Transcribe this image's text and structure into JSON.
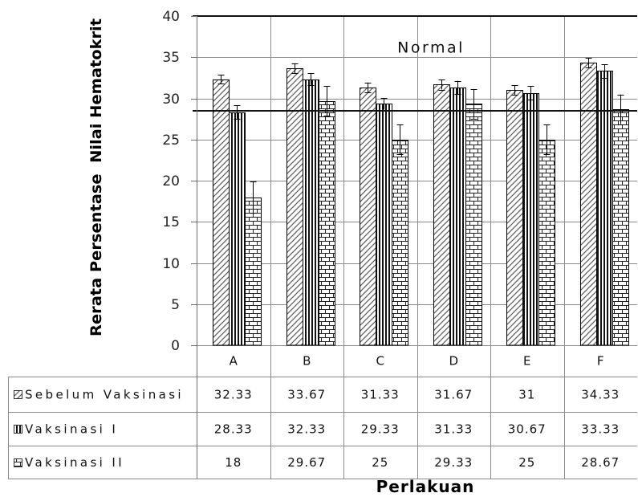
{
  "chart_data": {
    "type": "bar",
    "categories": [
      "A",
      "B",
      "C",
      "D",
      "E",
      "F"
    ],
    "series": [
      {
        "name": "Sebelum Vaksinasi",
        "values": [
          32.33,
          33.67,
          31.33,
          31.67,
          31,
          34.33
        ],
        "errors": [
          0.5,
          0.6,
          0.6,
          0.6,
          0.6,
          0.6
        ],
        "pattern": "diagonal-hatch"
      },
      {
        "name": "Vaksinasi I",
        "values": [
          28.33,
          32.33,
          29.33,
          31.33,
          30.67,
          33.33
        ],
        "errors": [
          0.8,
          0.7,
          0.7,
          0.8,
          0.8,
          0.8
        ],
        "pattern": "vertical-lines"
      },
      {
        "name": "Vaksinasi II",
        "values": [
          18,
          29.67,
          25,
          29.33,
          25,
          28.67
        ],
        "errors": [
          1.9,
          1.8,
          1.8,
          1.8,
          1.8,
          1.8
        ],
        "pattern": "brick"
      }
    ],
    "xlabel": "Perlakuan",
    "ylabel": "Rerata Persentase  Nilai Hematokrit",
    "ylim": [
      0,
      40
    ],
    "yticks": [
      0,
      5,
      10,
      15,
      20,
      25,
      30,
      35,
      40
    ],
    "grid": true,
    "legend": "data-table-below",
    "data_table": true,
    "normal_range": [
      28.5,
      40
    ],
    "normal_label": "Normal"
  }
}
